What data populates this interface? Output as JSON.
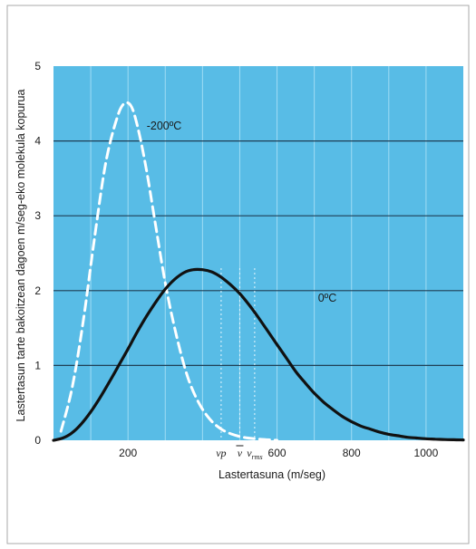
{
  "chart_data": {
    "type": "line",
    "title": "",
    "xlabel": "Lastertasuna (m/seg)",
    "ylabel": "Lastertasun tarte bakoitzean dagoen m/seg-eko molekula kopurua",
    "xlim": [
      0,
      1100
    ],
    "ylim": [
      0,
      5
    ],
    "x_ticks": [
      200,
      400,
      600,
      800,
      1000
    ],
    "x_tick_labels": [
      "200",
      "",
      "600",
      "800",
      "1000"
    ],
    "y_ticks": [
      0,
      1,
      2,
      3,
      4,
      5
    ],
    "y_tick_labels": [
      "0",
      "1",
      "2",
      "3",
      "4",
      "5"
    ],
    "grid": {
      "horizontal": true,
      "vertical": true
    },
    "colors": {
      "plot_background": "#58bce6",
      "gridline_horizontal": "#1f3f55",
      "gridline_vertical": "#9fdcf4",
      "series_0C": "#111111",
      "series_minus200C": "#ffffff"
    },
    "series": [
      {
        "name": "-200ºC",
        "style": "dashed",
        "x": [
          20,
          50,
          80,
          110,
          140,
          170,
          190,
          210,
          230,
          250,
          270,
          300,
          330,
          360,
          390,
          420,
          450,
          480,
          510,
          540,
          570,
          600
        ],
        "y": [
          0.12,
          0.7,
          1.6,
          2.7,
          3.7,
          4.3,
          4.5,
          4.45,
          4.1,
          3.6,
          3.0,
          2.1,
          1.4,
          0.85,
          0.5,
          0.28,
          0.15,
          0.08,
          0.04,
          0.02,
          0.01,
          0.0
        ]
      },
      {
        "name": "0ºC",
        "style": "solid",
        "x": [
          0,
          25,
          50,
          75,
          100,
          125,
          150,
          175,
          200,
          225,
          250,
          275,
          300,
          325,
          350,
          375,
          400,
          425,
          450,
          475,
          500,
          525,
          550,
          575,
          600,
          625,
          650,
          675,
          700,
          725,
          750,
          775,
          800,
          825,
          850,
          875,
          900,
          925,
          950,
          975,
          1000,
          1025,
          1050,
          1075,
          1100
        ],
        "y": [
          0.0,
          0.03,
          0.1,
          0.22,
          0.38,
          0.57,
          0.78,
          1.0,
          1.22,
          1.45,
          1.66,
          1.85,
          2.02,
          2.15,
          2.24,
          2.28,
          2.28,
          2.25,
          2.18,
          2.08,
          1.96,
          1.81,
          1.64,
          1.46,
          1.28,
          1.1,
          0.92,
          0.77,
          0.63,
          0.51,
          0.41,
          0.32,
          0.25,
          0.19,
          0.15,
          0.11,
          0.08,
          0.06,
          0.04,
          0.03,
          0.02,
          0.015,
          0.01,
          0.007,
          0.005
        ]
      }
    ],
    "annotations": [
      {
        "text": "-200ºC",
        "x": 250,
        "y": 4.2
      },
      {
        "text": "0ºC",
        "x": 710,
        "y": 1.9
      }
    ],
    "markers": [
      {
        "name": "vp",
        "text": "vp",
        "x": 450
      },
      {
        "name": "v-mean",
        "text": "v",
        "x": 500
      },
      {
        "name": "v-rms",
        "text": "v",
        "subscript": "rms",
        "x": 540
      }
    ]
  }
}
